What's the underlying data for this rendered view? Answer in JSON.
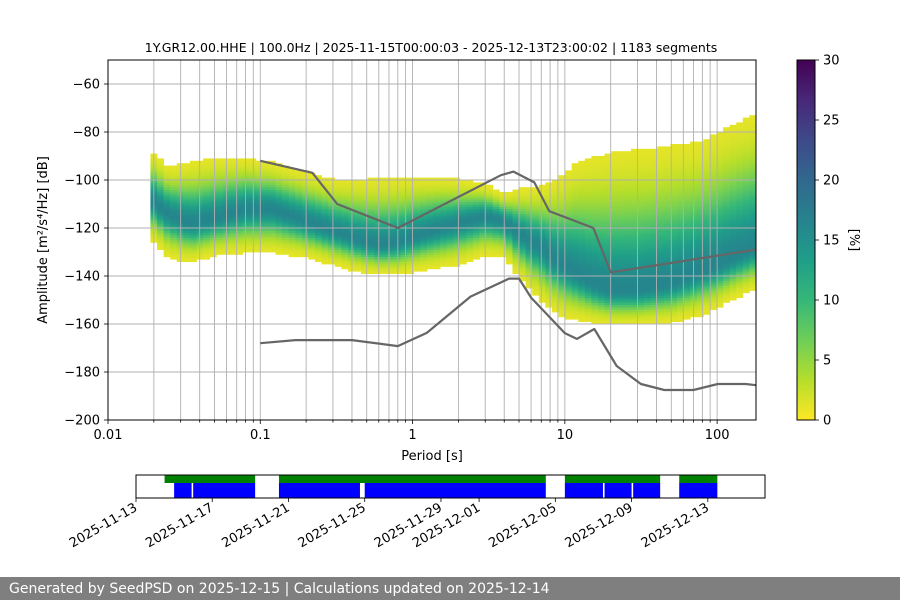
{
  "chart_data": {
    "type": "heatmap",
    "title": "1Y.GR12.00.HHE | 100.0Hz | 2025-11-15T00:00:03 - 2025-12-13T23:00:02 | 1183 segments",
    "xlabel": "Period [s]",
    "ylabel": "Amplitude [m²/s⁴/Hz] [dB]",
    "x_scale": "log",
    "xlim": [
      0.01,
      180
    ],
    "ylim": [
      -200,
      -50
    ],
    "x_ticks": [
      0.01,
      0.1,
      1,
      10,
      100
    ],
    "x_tick_labels": [
      "0.01",
      "0.1",
      "1",
      "10",
      "100"
    ],
    "y_ticks": [
      -200,
      -180,
      -160,
      -140,
      -120,
      -100,
      -80,
      -60
    ],
    "y_tick_labels": [
      "−200",
      "−180",
      "−160",
      "−140",
      "−120",
      "−100",
      "−80",
      "−60"
    ],
    "grid": true,
    "psd_distribution": {
      "period_range": [
        0.019,
        180
      ],
      "mode": [
        [
          0.019,
          -108
        ],
        [
          0.025,
          -114
        ],
        [
          0.035,
          -118
        ],
        [
          0.05,
          -116
        ],
        [
          0.08,
          -112
        ],
        [
          0.12,
          -112
        ],
        [
          0.2,
          -117
        ],
        [
          0.3,
          -121
        ],
        [
          0.45,
          -125
        ],
        [
          0.6,
          -127
        ],
        [
          0.8,
          -126
        ],
        [
          1.2,
          -122
        ],
        [
          2,
          -118
        ],
        [
          3,
          -115
        ],
        [
          4,
          -117
        ],
        [
          5,
          -122
        ],
        [
          7,
          -128
        ],
        [
          10,
          -136
        ],
        [
          15,
          -143
        ],
        [
          20,
          -146
        ],
        [
          30,
          -146
        ],
        [
          50,
          -143
        ],
        [
          80,
          -138
        ],
        [
          120,
          -133
        ],
        [
          180,
          -128
        ]
      ],
      "upper": [
        [
          0.019,
          -88
        ],
        [
          0.025,
          -95
        ],
        [
          0.035,
          -93
        ],
        [
          0.05,
          -91
        ],
        [
          0.08,
          -91
        ],
        [
          0.12,
          -93
        ],
        [
          0.2,
          -97
        ],
        [
          0.3,
          -100
        ],
        [
          0.5,
          -100
        ],
        [
          1,
          -99
        ],
        [
          1.5,
          -99
        ],
        [
          2,
          -100
        ],
        [
          3,
          -102
        ],
        [
          4,
          -106
        ],
        [
          5,
          -104
        ],
        [
          7,
          -103
        ],
        [
          9,
          -100
        ],
        [
          12,
          -93
        ],
        [
          20,
          -89
        ],
        [
          40,
          -87
        ],
        [
          80,
          -84
        ],
        [
          120,
          -78
        ],
        [
          180,
          -73
        ]
      ],
      "lower": [
        [
          0.019,
          -124
        ],
        [
          0.025,
          -132
        ],
        [
          0.035,
          -134
        ],
        [
          0.05,
          -131
        ],
        [
          0.08,
          -130
        ],
        [
          0.12,
          -130
        ],
        [
          0.2,
          -132
        ],
        [
          0.3,
          -135
        ],
        [
          0.45,
          -138
        ],
        [
          0.6,
          -139
        ],
        [
          0.8,
          -139
        ],
        [
          1.2,
          -137
        ],
        [
          2,
          -135
        ],
        [
          3,
          -131
        ],
        [
          4,
          -132
        ],
        [
          5,
          -140
        ],
        [
          7,
          -150
        ],
        [
          10,
          -157
        ],
        [
          15,
          -159
        ],
        [
          20,
          -160
        ],
        [
          30,
          -160
        ],
        [
          50,
          -159
        ],
        [
          80,
          -156
        ],
        [
          120,
          -150
        ],
        [
          180,
          -145
        ]
      ]
    },
    "noise_models": [
      {
        "name": "high-noise",
        "points": [
          [
            0.1,
            -92
          ],
          [
            0.22,
            -97
          ],
          [
            0.32,
            -110
          ],
          [
            0.8,
            -120
          ],
          [
            3.8,
            -98
          ],
          [
            4.6,
            -96.5
          ],
          [
            6.3,
            -101
          ],
          [
            7.9,
            -113
          ],
          [
            15.4,
            -120
          ],
          [
            20,
            -138.5
          ],
          [
            180,
            -129
          ]
        ]
      },
      {
        "name": "low-noise",
        "points": [
          [
            0.1,
            -168
          ],
          [
            0.17,
            -166.7
          ],
          [
            0.4,
            -166.7
          ],
          [
            0.8,
            -169.2
          ],
          [
            1.24,
            -163.7
          ],
          [
            2.4,
            -148.6
          ],
          [
            4.3,
            -141.1
          ],
          [
            5.0,
            -141.1
          ],
          [
            6.0,
            -149
          ],
          [
            10,
            -163.8
          ],
          [
            12,
            -166.2
          ],
          [
            15.6,
            -162.1
          ],
          [
            21.9,
            -177.5
          ],
          [
            31.6,
            -185
          ],
          [
            45,
            -187.5
          ],
          [
            70,
            -187.5
          ],
          [
            101,
            -185
          ],
          [
            154,
            -185
          ],
          [
            180,
            -185.5
          ]
        ]
      }
    ],
    "colorbar": {
      "label": "[%]",
      "range": [
        0,
        30
      ],
      "ticks": [
        0,
        5,
        10,
        15,
        20,
        25,
        30
      ],
      "colormap": "viridis_r",
      "colors": [
        "#fde725",
        "#b5de2b",
        "#6ece58",
        "#35b779",
        "#1f9e89",
        "#26828e",
        "#31688e",
        "#3e4989",
        "#482878",
        "#440154"
      ]
    },
    "coverage": {
      "date_range": [
        "2025-11-13",
        "2025-12-16"
      ],
      "tick_labels": [
        "2025-11-13",
        "2025-11-17",
        "2025-11-21",
        "2025-11-25",
        "2025-11-29",
        "2025-12-01",
        "2025-12-05",
        "2025-12-09",
        "2025-12-13"
      ],
      "tick_dates": [
        "2025-11-13",
        "2025-11-17",
        "2025-11-21",
        "2025-11-25",
        "2025-11-29",
        "2025-12-01",
        "2025-12-05",
        "2025-12-09",
        "2025-12-13"
      ],
      "data_color": "#008000",
      "psd_color": "#0000ff",
      "data_spans": [
        [
          "2025-11-14T12:00",
          "2025-11-19T06:00"
        ],
        [
          "2025-11-20T12:00",
          "2025-12-04T12:00"
        ],
        [
          "2025-12-05T12:00",
          "2025-12-10T12:00"
        ],
        [
          "2025-12-11T12:00",
          "2025-12-13T12:00"
        ]
      ],
      "psd_spans": [
        [
          "2025-11-15T00:00",
          "2025-11-15T22:00"
        ],
        [
          "2025-11-16T00:00",
          "2025-11-19T06:00"
        ],
        [
          "2025-11-20T12:00",
          "2025-11-24T18:00"
        ],
        [
          "2025-11-25T00:00",
          "2025-12-04T12:00"
        ],
        [
          "2025-12-05T12:00",
          "2025-12-07T12:00"
        ],
        [
          "2025-12-07T14:00",
          "2025-12-09T00:00"
        ],
        [
          "2025-12-09T02:00",
          "2025-12-10T12:00"
        ],
        [
          "2025-12-11T12:00",
          "2025-12-13T12:00"
        ]
      ]
    }
  },
  "footer": {
    "text": "Generated by SeedPSD on 2025-12-15 | Calculations updated on 2025-12-14"
  }
}
